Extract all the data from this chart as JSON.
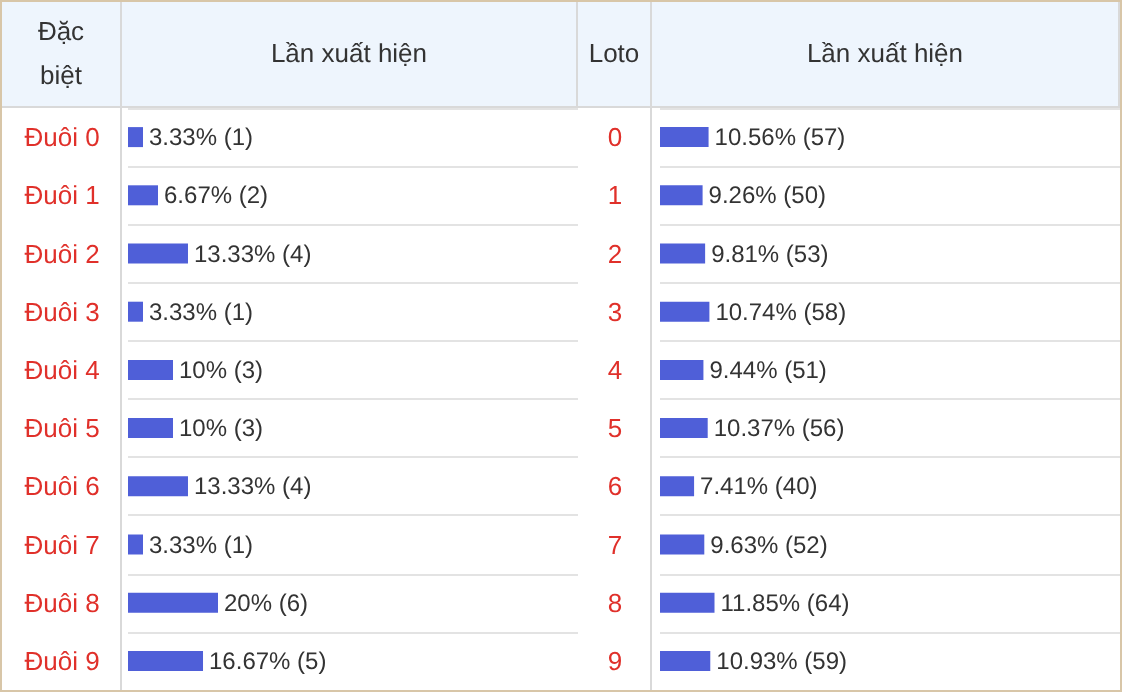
{
  "chart_data": [
    {
      "type": "bar",
      "orientation": "horizontal",
      "ylabel": "Đặc biệt",
      "title": "Lần xuất hiện",
      "categories": [
        "Đuôi 0",
        "Đuôi 1",
        "Đuôi 2",
        "Đuôi 3",
        "Đuôi 4",
        "Đuôi 5",
        "Đuôi 6",
        "Đuôi 7",
        "Đuôi 8",
        "Đuôi 9"
      ],
      "values": [
        3.33,
        6.67,
        13.33,
        3.33,
        10,
        10,
        13.33,
        3.33,
        20,
        16.67
      ],
      "value_labels": [
        "3.33% (1)",
        "6.67% (2)",
        "13.33% (4)",
        "3.33% (1)",
        "10% (3)",
        "10% (3)",
        "13.33% (4)",
        "3.33% (1)",
        "20% (6)",
        "16.67% (5)"
      ],
      "color": "#4f5fd8",
      "xlim": [
        0,
        100
      ],
      "tick_labels": false
    },
    {
      "type": "bar",
      "orientation": "horizontal",
      "ylabel": "Loto",
      "title": "Lần xuất hiện",
      "categories": [
        "0",
        "1",
        "2",
        "3",
        "4",
        "5",
        "6",
        "7",
        "8",
        "9"
      ],
      "values": [
        10.56,
        9.26,
        9.81,
        10.74,
        9.44,
        10.37,
        7.41,
        9.63,
        11.85,
        10.93
      ],
      "value_labels": [
        "10.56% (57)",
        "9.26% (50)",
        "9.81% (53)",
        "10.74% (58)",
        "9.44% (51)",
        "10.37% (56)",
        "7.41% (40)",
        "9.63% (52)",
        "11.85% (64)",
        "10.93% (59)"
      ],
      "color": "#4f5fd8",
      "xlim": [
        0,
        100
      ],
      "tick_labels": false
    }
  ]
}
